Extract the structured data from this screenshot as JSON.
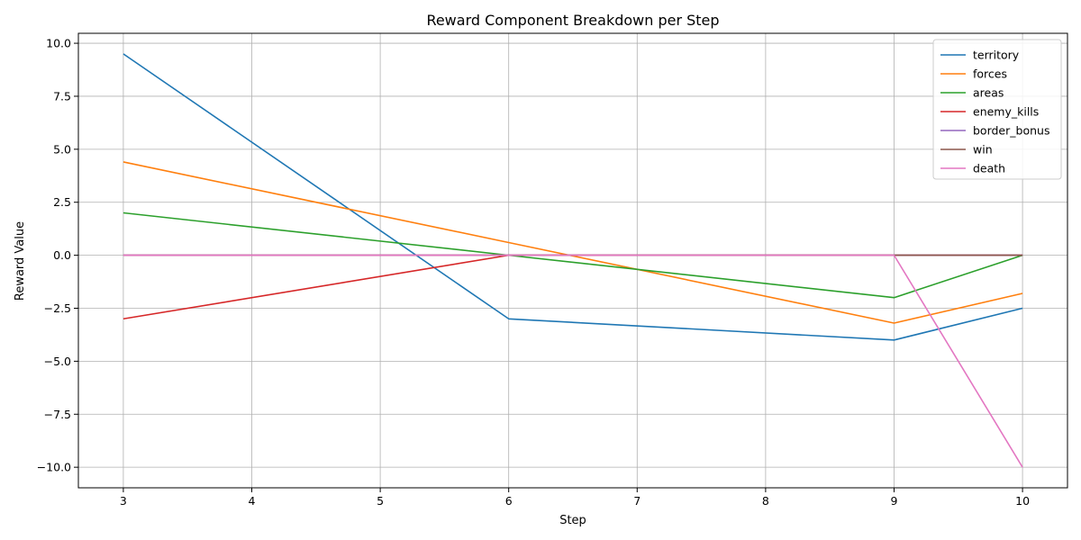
{
  "chart_data": {
    "type": "line",
    "title": "Reward Component Breakdown per Step",
    "xlabel": "Step",
    "ylabel": "Reward Value",
    "x": [
      3,
      6,
      9,
      10
    ],
    "xlim": [
      2.65,
      10.35
    ],
    "ylim": [
      -10.97,
      10.47
    ],
    "xticks": [
      3,
      4,
      5,
      6,
      7,
      8,
      9,
      10
    ],
    "yticks": [
      10.0,
      7.5,
      5.0,
      2.5,
      0.0,
      -2.5,
      -5.0,
      -7.5,
      -10.0
    ],
    "ytick_labels": [
      "10.0",
      "7.5",
      "5.0",
      "2.5",
      "0.0",
      "−2.5",
      "−5.0",
      "−7.5",
      "−10.0"
    ],
    "grid": true,
    "legend_position": "top-right",
    "series": [
      {
        "name": "territory",
        "color": "#1f77b4",
        "values": [
          9.5,
          -3.0,
          -4.0,
          -2.5
        ]
      },
      {
        "name": "forces",
        "color": "#ff7f0e",
        "values": [
          4.4,
          0.6,
          -3.2,
          -1.8
        ]
      },
      {
        "name": "areas",
        "color": "#2ca02c",
        "values": [
          2.0,
          0.0,
          -2.0,
          0.0
        ]
      },
      {
        "name": "enemy_kills",
        "color": "#d62728",
        "values": [
          -3.0,
          0.0,
          0.0,
          0.0
        ]
      },
      {
        "name": "border_bonus",
        "color": "#9467bd",
        "values": [
          0.0,
          0.0,
          0.0,
          0.0
        ]
      },
      {
        "name": "win",
        "color": "#8c564b",
        "values": [
          0.0,
          0.0,
          0.0,
          0.0
        ]
      },
      {
        "name": "death",
        "color": "#e377c2",
        "values": [
          0.0,
          0.0,
          0.0,
          -10.0
        ]
      }
    ]
  }
}
